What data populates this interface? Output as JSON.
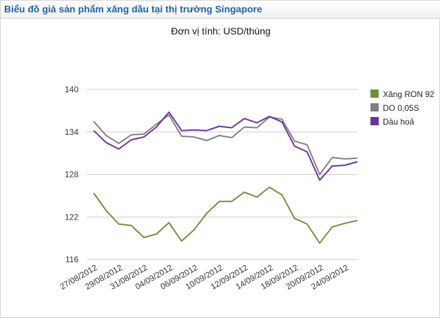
{
  "header": {
    "title": "Biểu đồ giá sản phẩm xăng dầu tại thị trường Singapore"
  },
  "colors": {
    "header_title": "#1f62a8",
    "grid": "#cccccc",
    "xang": "#6e8f3b",
    "do": "#808080",
    "dau_hoa": "#7030a0"
  },
  "chart_data": {
    "type": "line",
    "title": "Đơn vị tính: USD/thùng",
    "xlabel": "",
    "ylabel": "",
    "ylim": [
      116,
      140
    ],
    "yticks": [
      116,
      122,
      128,
      134,
      140
    ],
    "grid": true,
    "legend_position": "right",
    "x": [
      "27/08/2012",
      "28/08/2012",
      "29/08/2012",
      "30/08/2012",
      "31/08/2012",
      "03/09/2012",
      "04/09/2012",
      "05/09/2012",
      "06/09/2012",
      "07/09/2012",
      "10/09/2012",
      "11/09/2012",
      "12/09/2012",
      "13/09/2012",
      "14/09/2012",
      "17/09/2012",
      "18/09/2012",
      "19/09/2012",
      "20/09/2012",
      "21/09/2012",
      "24/09/2012",
      "25/09/2012"
    ],
    "x_tick_labels": [
      "27/08/2012",
      "29/08/2012",
      "31/08/2012",
      "04/09/2012",
      "06/09/2012",
      "10/09/2012",
      "12/09/2012",
      "14/09/2012",
      "18/09/2012",
      "20/09/2012",
      "24/09/2012"
    ],
    "series": [
      {
        "name": "Xăng RON 92",
        "color": "#6e8f3b",
        "values": [
          125.4,
          122.9,
          121.0,
          120.8,
          119.1,
          119.6,
          121.2,
          118.6,
          120.2,
          122.5,
          124.2,
          124.2,
          125.5,
          124.8,
          126.2,
          125.1,
          121.8,
          121.0,
          118.3,
          120.6,
          121.1,
          121.5
        ]
      },
      {
        "name": "DO 0,05S",
        "color": "#808080",
        "values": [
          135.5,
          133.5,
          132.4,
          133.6,
          133.7,
          135.1,
          136.4,
          133.4,
          133.3,
          132.8,
          133.5,
          133.2,
          134.7,
          134.6,
          136.1,
          135.8,
          132.7,
          132.2,
          128.0,
          130.4,
          130.2,
          130.3
        ]
      },
      {
        "name": "Dầu hoả",
        "color": "#7030a0",
        "values": [
          134.2,
          132.5,
          131.6,
          132.9,
          133.3,
          134.7,
          136.8,
          134.2,
          134.3,
          134.2,
          134.8,
          134.6,
          135.9,
          135.3,
          136.2,
          135.4,
          132.0,
          131.2,
          127.2,
          129.2,
          129.3,
          129.8
        ]
      }
    ]
  }
}
